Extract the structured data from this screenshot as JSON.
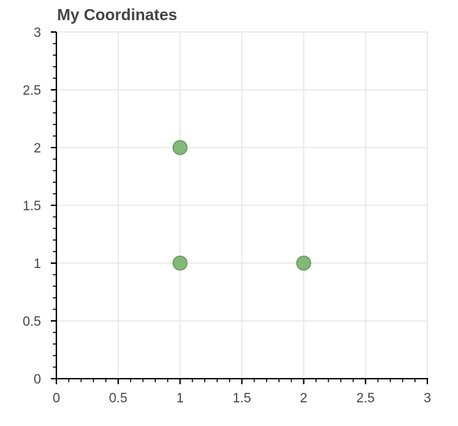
{
  "chart_data": {
    "type": "scatter",
    "title": "My Coordinates",
    "xlabel": "",
    "ylabel": "",
    "xlim": [
      0,
      3
    ],
    "ylim": [
      0,
      3
    ],
    "x_ticks": [
      "0",
      "0.5",
      "1",
      "1.5",
      "2",
      "2.5",
      "3"
    ],
    "y_ticks": [
      "0",
      "0.5",
      "1",
      "1.5",
      "2",
      "2.5",
      "3"
    ],
    "grid": true,
    "legend": "none",
    "marker_color": "#82b878",
    "marker_edge_color": "#5f9a55",
    "points": [
      {
        "x": 1,
        "y": 1
      },
      {
        "x": 1,
        "y": 2
      },
      {
        "x": 2,
        "y": 1
      }
    ]
  }
}
